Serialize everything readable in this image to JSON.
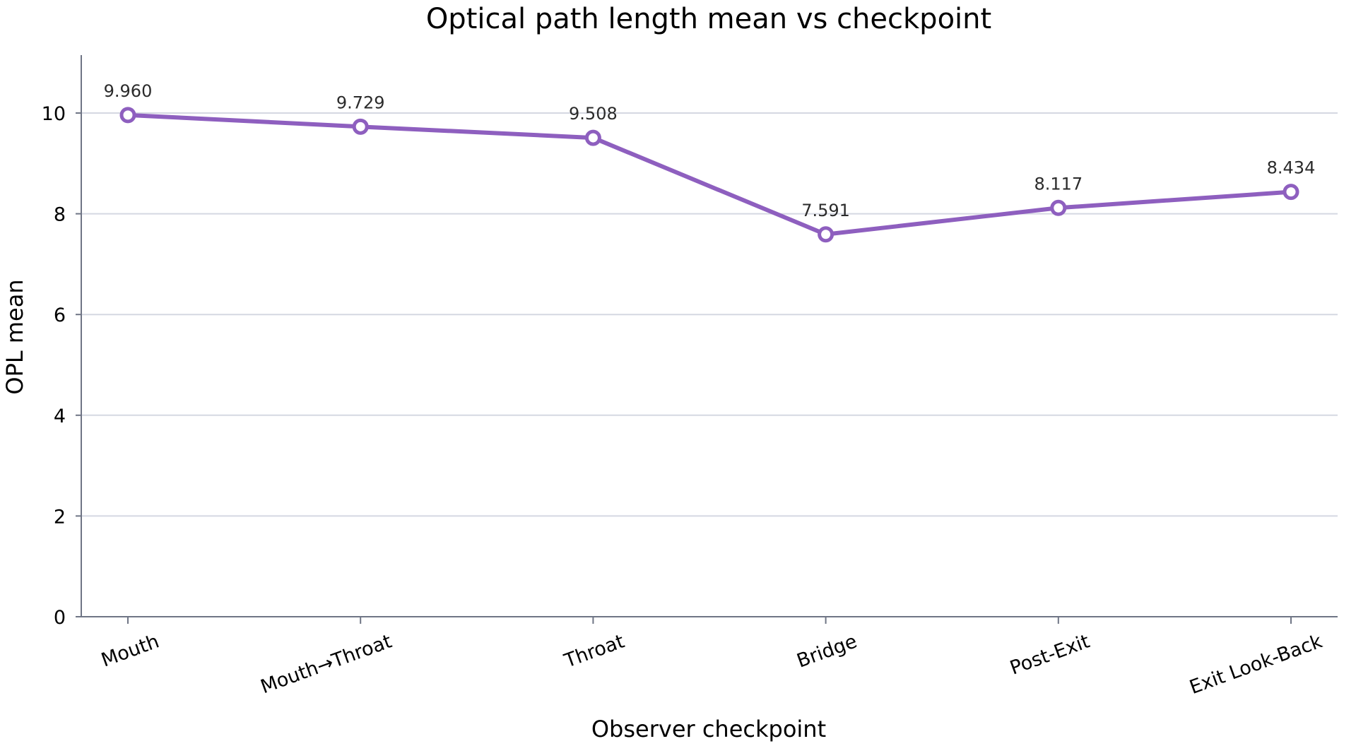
{
  "chart_data": {
    "type": "line",
    "title": "Optical path length mean vs checkpoint",
    "xlabel": "Observer checkpoint",
    "ylabel": "OPL mean",
    "categories": [
      "Mouth",
      "Mouth→Throat",
      "Throat",
      "Bridge",
      "Post-Exit",
      "Exit Look-Back"
    ],
    "values": [
      9.96,
      9.729,
      9.508,
      7.591,
      8.117,
      8.434
    ],
    "data_labels": [
      "9.960",
      "9.729",
      "9.508",
      "7.591",
      "8.117",
      "8.434"
    ],
    "ylim": [
      0,
      11.15
    ],
    "yticks": [
      0,
      2,
      4,
      6,
      8,
      10
    ],
    "grid": "horizontal",
    "legend": "none",
    "colors": {
      "line": "#8e5fbf",
      "marker_fill": "#ffffff",
      "grid": "#d5d8e2",
      "axis": "#6f7585"
    }
  }
}
